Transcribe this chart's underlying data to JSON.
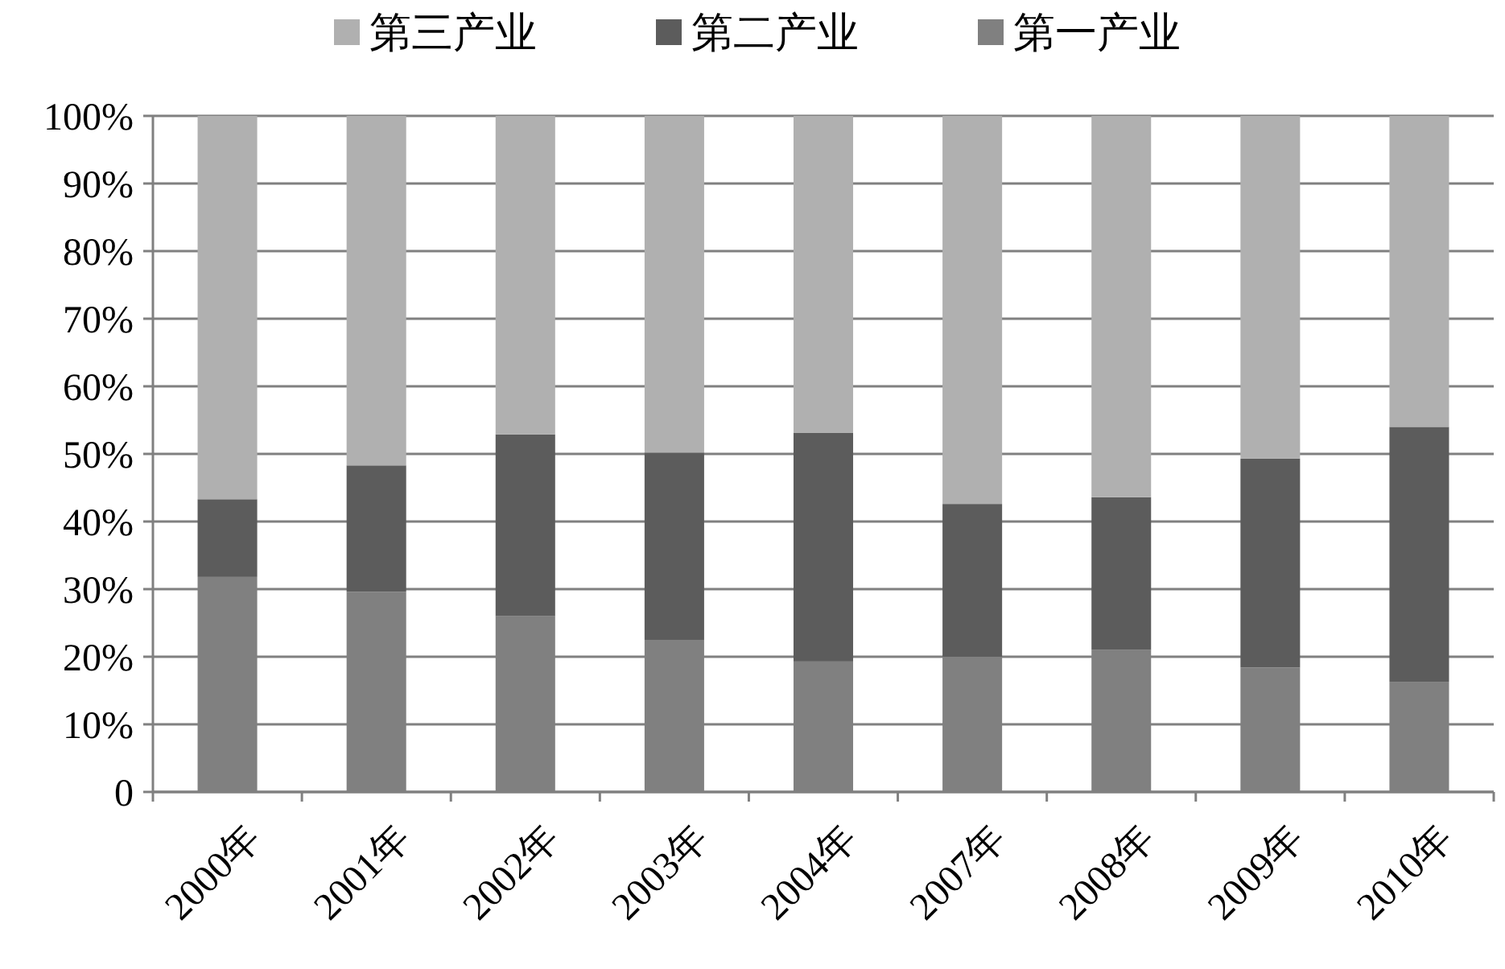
{
  "chart_data": {
    "type": "bar",
    "stacked": true,
    "categories": [
      "2000年",
      "2001年",
      "2002年",
      "2003年",
      "2004年",
      "2007年",
      "2008年",
      "2009年",
      "2010年"
    ],
    "series": [
      {
        "name": "第一产业",
        "color": "#808080",
        "values": [
          31.8,
          29.6,
          26.0,
          22.5,
          19.3,
          20.0,
          21.0,
          18.4,
          16.3
        ]
      },
      {
        "name": "第二产业",
        "color": "#5c5c5c",
        "values": [
          11.5,
          18.7,
          26.9,
          27.7,
          33.8,
          22.6,
          22.6,
          30.9,
          37.7
        ]
      },
      {
        "name": "第三产业",
        "color": "#b0b0b0",
        "values": [
          56.7,
          51.7,
          47.1,
          49.8,
          46.9,
          57.4,
          56.4,
          50.7,
          46.0
        ]
      }
    ],
    "ylim": [
      0,
      100
    ],
    "yticks": [
      0,
      {
        "value": 10,
        "label": "10%"
      },
      {
        "value": 20,
        "label": "20%"
      },
      {
        "value": 30,
        "label": "30%"
      },
      {
        "value": 40,
        "label": "40%"
      },
      {
        "value": 50,
        "label": "50%"
      },
      {
        "value": 60,
        "label": "60%"
      },
      {
        "value": 70,
        "label": "70%"
      },
      {
        "value": 80,
        "label": "80%"
      },
      {
        "value": 90,
        "label": "90%"
      },
      {
        "value": 100,
        "label": "100%"
      }
    ],
    "grid": "y",
    "legend": "top"
  }
}
